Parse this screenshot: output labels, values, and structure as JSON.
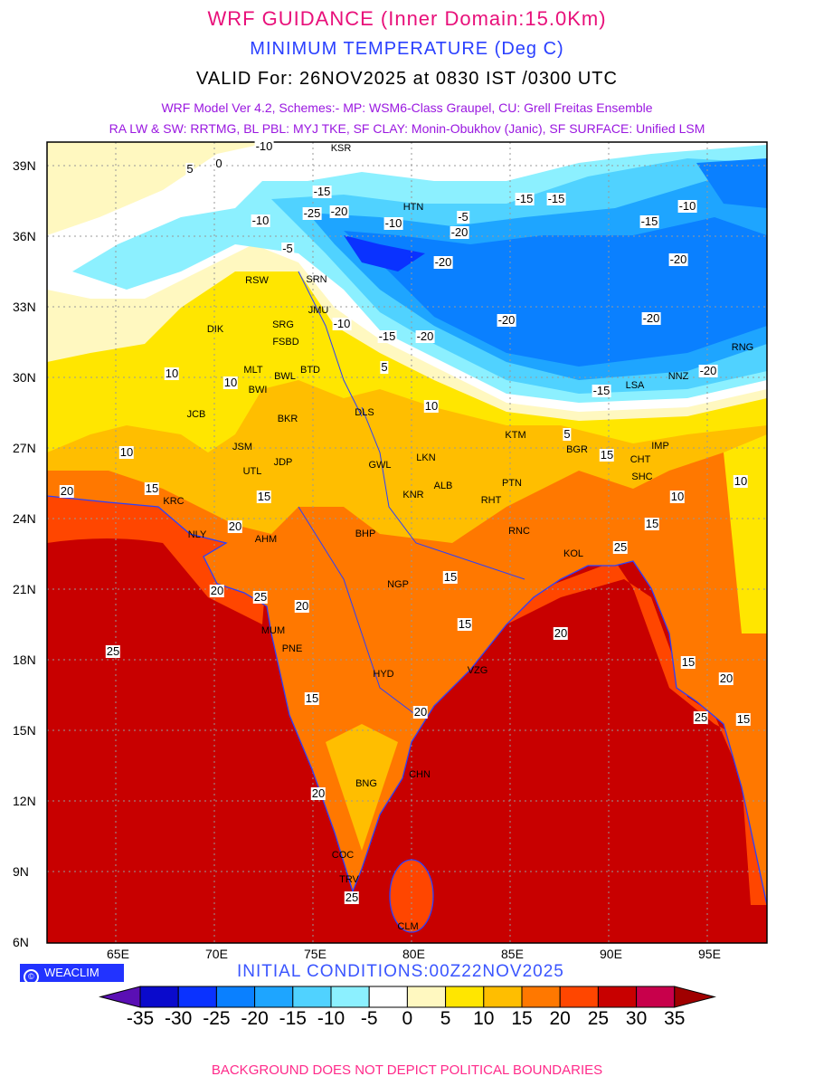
{
  "header": {
    "title": "WRF GUIDANCE (Inner Domain:15.0Km)",
    "variable": "MINIMUM TEMPERATURE (Deg C)",
    "valid": "VALID For: 26NOV2025 at 0830 IST /0300 UTC",
    "model_line1": "WRF Model Ver 4.2, Schemes:- MP: WSM6-Class Graupel, CU: Grell Freitas Ensemble",
    "model_line2": "RA LW & SW: RRTMG, BL PBL: MYJ TKE, SF CLAY: Monin-Obukhov (Janic), SF SURFACE: Unified LSM"
  },
  "axes": {
    "lon_ticks": [
      "65E",
      "70E",
      "75E",
      "80E",
      "85E",
      "90E",
      "95E"
    ],
    "lat_ticks": [
      "39N",
      "36N",
      "33N",
      "30N",
      "27N",
      "24N",
      "21N",
      "18N",
      "15N",
      "12N",
      "9N",
      "6N"
    ]
  },
  "contour_labels": [
    "-10",
    "-15",
    "-20",
    "-25",
    "-20",
    "-10",
    "-15",
    "-20",
    "-20",
    "-20",
    "-20",
    "-15",
    "-10",
    "-15",
    "-20",
    "-20",
    "-15",
    "-10",
    "-5",
    "0",
    "5",
    "5",
    "10",
    "10",
    "10",
    "15",
    "15",
    "15",
    "20",
    "20",
    "20",
    "20",
    "25",
    "25",
    "25",
    "15",
    "15",
    "20",
    "15",
    "10",
    "10",
    "15",
    "20",
    "25",
    "15",
    "20",
    "-5",
    "-10",
    "-15",
    "5",
    "10",
    "15",
    "25",
    "20"
  ],
  "cities": [
    "KSR",
    "HTN",
    "SRN",
    "RSW",
    "JMU",
    "DIK",
    "SRG",
    "FSBD",
    "MLT",
    "BWL",
    "BWI",
    "BTD",
    "DLS",
    "JCB",
    "BKR",
    "JSM",
    "JDP",
    "UTL",
    "KRC",
    "NLY",
    "AHM",
    "GWL",
    "LKN",
    "KNR",
    "ALB",
    "PTN",
    "RHT",
    "RNC",
    "BHP",
    "NGP",
    "KOL",
    "KTM",
    "BGR",
    "LSA",
    "NNZ",
    "IMP",
    "CHT",
    "SHC",
    "MUM",
    "PNE",
    "HYD",
    "VZG",
    "CHN",
    "BNG",
    "COC",
    "TRV",
    "CLM",
    "RNG"
  ],
  "brand": {
    "symbol": "©",
    "name": "WEACLIM"
  },
  "initial_conditions": "INITIAL CONDITIONS:00Z22NOV2025",
  "colorbar": {
    "labels": [
      "-35",
      "-30",
      "-25",
      "-20",
      "-15",
      "-10",
      "-5",
      "0",
      "5",
      "10",
      "15",
      "20",
      "25",
      "30",
      "35"
    ],
    "colors": [
      "#5a0fb4",
      "#0a0acc",
      "#0a32ff",
      "#0a80ff",
      "#1ea5ff",
      "#50d2ff",
      "#8cf0ff",
      "#ffffff",
      "#fff8c0",
      "#ffe600",
      "#ffbe00",
      "#ff7800",
      "#ff4600",
      "#c80000",
      "#c8004b",
      "#a00000"
    ]
  },
  "footer": "BACKGROUND DOES NOT DEPICT POLITICAL BOUNDARIES"
}
